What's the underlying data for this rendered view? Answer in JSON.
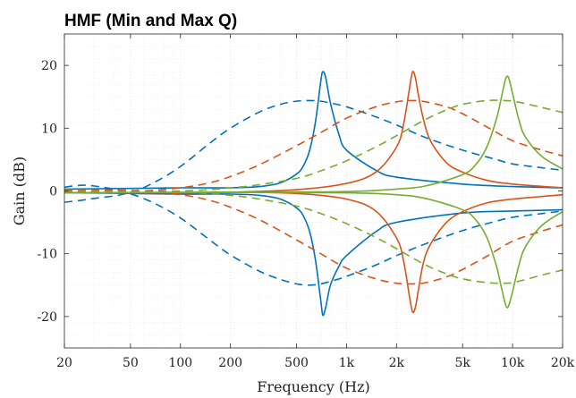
{
  "chart_data": {
    "type": "line",
    "title": "HMF (Min and Max Q)",
    "xlabel": "Frequency (Hz)",
    "ylabel": "Gain (dB)",
    "xscale": "log",
    "xlim": [
      20,
      20000
    ],
    "ylim": [
      -25,
      25
    ],
    "x_ticks": [
      20,
      50,
      100,
      200,
      500,
      1000,
      2000,
      5000,
      10000,
      20000
    ],
    "x_tick_labels": [
      "20",
      "50",
      "100",
      "200",
      "500",
      "1k",
      "2k",
      "5k",
      "10k",
      "20k"
    ],
    "y_ticks": [
      -20,
      -10,
      0,
      10,
      20
    ],
    "y_tick_labels": [
      "-20",
      "-10",
      "0",
      "10",
      "20"
    ],
    "grid": true,
    "colors": {
      "blue": "#0072bd",
      "orange": "#d95319",
      "green": "#77ac30"
    },
    "series": [
      {
        "color": "#0072bd",
        "style": "solid",
        "x": [
          20,
          50,
          100,
          200,
          300,
          400,
          500,
          550,
          600,
          650,
          700,
          720,
          750,
          800,
          900,
          1000,
          1500,
          2000,
          5000,
          10000,
          20000
        ],
        "y": [
          0.3,
          0.4,
          0.5,
          0.5,
          0.7,
          1.3,
          2.7,
          4.0,
          6.5,
          11.0,
          17.5,
          19.0,
          18.0,
          14.0,
          9.0,
          6.5,
          3.3,
          2.2,
          1.1,
          0.7,
          0.5
        ]
      },
      {
        "color": "#0072bd",
        "style": "solid",
        "x": [
          20,
          50,
          100,
          200,
          300,
          400,
          500,
          550,
          600,
          650,
          700,
          720,
          750,
          800,
          900,
          1000,
          1500,
          2000,
          5000,
          10000,
          20000
        ],
        "y": [
          -0.3,
          -0.4,
          -0.5,
          -0.5,
          -0.7,
          -1.3,
          -2.7,
          -4.0,
          -6.5,
          -11.0,
          -17.5,
          -19.8,
          -18.5,
          -15.0,
          -12.0,
          -10.3,
          -6.5,
          -5.0,
          -3.5,
          -3.2,
          -3.0
        ]
      },
      {
        "color": "#0072bd",
        "style": "dashed",
        "x": [
          20,
          25,
          30,
          40,
          50,
          70,
          100,
          150,
          200,
          300,
          400,
          500,
          600,
          700,
          800,
          1000,
          1500,
          2000,
          3000,
          5000,
          8000,
          10000,
          15000,
          20000
        ],
        "y": [
          0.6,
          0.9,
          0.8,
          0.3,
          -0.2,
          1.4,
          3.9,
          7.6,
          10.0,
          12.6,
          13.8,
          14.3,
          14.4,
          14.3,
          14.0,
          13.4,
          11.8,
          10.5,
          8.5,
          6.5,
          5.0,
          4.3,
          3.7,
          3.3
        ]
      },
      {
        "color": "#0072bd",
        "style": "dashed",
        "x": [
          20,
          25,
          30,
          40,
          50,
          70,
          100,
          150,
          200,
          300,
          400,
          500,
          600,
          700,
          800,
          1000,
          1500,
          2000,
          3000,
          5000,
          8000,
          10000,
          15000,
          20000
        ],
        "y": [
          -1.8,
          -1.5,
          -1.2,
          -0.8,
          -0.5,
          -2.0,
          -4.3,
          -7.8,
          -10.2,
          -12.8,
          -14.1,
          -14.8,
          -15.0,
          -14.8,
          -14.4,
          -13.6,
          -11.8,
          -10.3,
          -8.4,
          -6.3,
          -4.8,
          -4.2,
          -3.6,
          -3.2
        ]
      },
      {
        "color": "#d95319",
        "style": "solid",
        "x": [
          20,
          100,
          200,
          500,
          1000,
          1500,
          2000,
          2200,
          2400,
          2500,
          2600,
          2700,
          2900,
          3200,
          4000,
          5000,
          7000,
          10000,
          20000
        ],
        "y": [
          -0.3,
          -0.3,
          -0.2,
          0.2,
          1.2,
          3.0,
          7.0,
          10.5,
          16.5,
          19.0,
          18.0,
          15.5,
          11.5,
          8.0,
          4.5,
          3.0,
          1.7,
          1.1,
          0.5
        ]
      },
      {
        "color": "#d95319",
        "style": "solid",
        "x": [
          20,
          100,
          200,
          500,
          1000,
          1500,
          2000,
          2200,
          2400,
          2500,
          2600,
          2700,
          2900,
          3200,
          4000,
          5000,
          7000,
          10000,
          20000
        ],
        "y": [
          -0.3,
          -0.3,
          -0.2,
          -0.4,
          -1.3,
          -3.2,
          -7.5,
          -11.0,
          -17.0,
          -19.3,
          -18.5,
          -16.0,
          -11.5,
          -8.5,
          -5.0,
          -3.3,
          -1.9,
          -1.3,
          -0.6
        ]
      },
      {
        "color": "#d95319",
        "style": "dashed",
        "x": [
          20,
          50,
          100,
          150,
          200,
          300,
          500,
          700,
          1000,
          1500,
          2000,
          2500,
          3000,
          4000,
          5000,
          7000,
          10000,
          15000,
          20000
        ],
        "y": [
          -0.2,
          -0.1,
          0.5,
          1.3,
          2.3,
          4.2,
          7.2,
          9.3,
          11.6,
          13.4,
          14.2,
          14.4,
          14.2,
          13.4,
          12.3,
          10.2,
          8.0,
          6.5,
          5.6
        ]
      },
      {
        "color": "#d95319",
        "style": "dashed",
        "x": [
          20,
          50,
          100,
          150,
          200,
          300,
          500,
          700,
          1000,
          1500,
          2000,
          2500,
          3000,
          4000,
          5000,
          7000,
          10000,
          15000,
          20000
        ],
        "y": [
          0.2,
          0.1,
          -0.6,
          -1.5,
          -2.6,
          -4.6,
          -7.8,
          -10.0,
          -12.3,
          -14.0,
          -14.7,
          -14.8,
          -14.6,
          -13.7,
          -12.5,
          -10.4,
          -8.0,
          -6.4,
          -5.4
        ]
      },
      {
        "color": "#77ac30",
        "style": "solid",
        "x": [
          20,
          200,
          1000,
          2000,
          3000,
          5000,
          6000,
          7000,
          8000,
          8500,
          9000,
          9300,
          9600,
          10000,
          11000,
          12000,
          15000,
          20000
        ],
        "y": [
          -0.3,
          -0.2,
          -0.1,
          0.3,
          0.8,
          2.6,
          4.2,
          7.0,
          11.5,
          14.5,
          17.5,
          18.3,
          17.5,
          15.5,
          11.0,
          8.5,
          5.5,
          3.5
        ]
      },
      {
        "color": "#77ac30",
        "style": "solid",
        "x": [
          20,
          200,
          1000,
          2000,
          3000,
          5000,
          6000,
          7000,
          8000,
          8500,
          9000,
          9300,
          9600,
          10000,
          11000,
          12000,
          15000,
          20000
        ],
        "y": [
          -0.3,
          -0.2,
          -0.3,
          -0.6,
          -1.2,
          -3.0,
          -4.6,
          -7.4,
          -12.0,
          -15.0,
          -17.8,
          -18.6,
          -17.8,
          -16.0,
          -11.5,
          -8.8,
          -5.5,
          -3.3
        ]
      },
      {
        "color": "#77ac30",
        "style": "dashed",
        "x": [
          20,
          100,
          200,
          300,
          500,
          700,
          1000,
          1500,
          2000,
          3000,
          4000,
          5000,
          7000,
          9000,
          10000,
          12000,
          15000,
          20000
        ],
        "y": [
          -0.1,
          0.0,
          0.5,
          1.0,
          2.0,
          3.2,
          4.8,
          7.0,
          8.8,
          11.4,
          12.9,
          13.8,
          14.4,
          14.4,
          14.3,
          13.9,
          13.3,
          12.5
        ]
      },
      {
        "color": "#77ac30",
        "style": "dashed",
        "x": [
          20,
          100,
          200,
          300,
          500,
          700,
          1000,
          1500,
          2000,
          3000,
          4000,
          5000,
          7000,
          9000,
          10000,
          12000,
          15000,
          20000
        ],
        "y": [
          0.0,
          -0.2,
          -0.7,
          -1.3,
          -2.4,
          -3.6,
          -5.2,
          -7.4,
          -9.2,
          -11.8,
          -13.2,
          -14.0,
          -14.6,
          -14.7,
          -14.6,
          -14.1,
          -13.4,
          -12.6
        ]
      }
    ]
  }
}
